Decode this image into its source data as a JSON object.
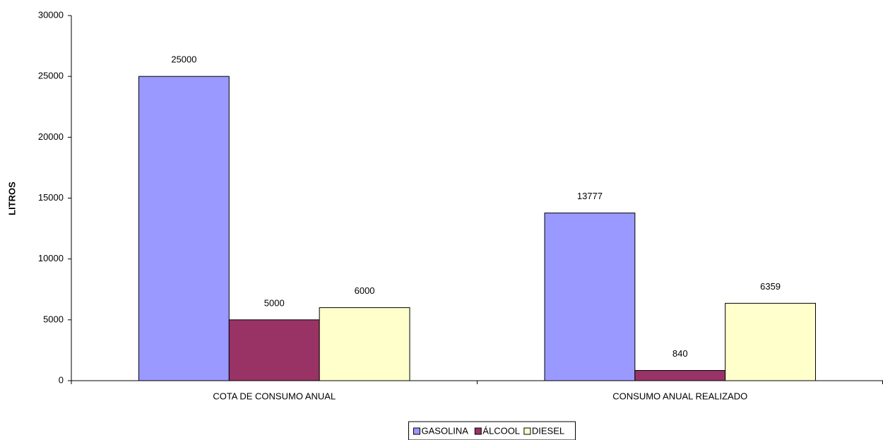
{
  "chart_data": {
    "type": "bar",
    "ylabel": "LITROS",
    "categories": [
      "COTA DE CONSUMO ANUAL",
      "CONSUMO ANUAL REALIZADO"
    ],
    "series": [
      {
        "name": "GASOLINA",
        "color": "#9999ff",
        "values": [
          25000,
          13777
        ]
      },
      {
        "name": "ÁLCOOL",
        "color": "#993366",
        "values": [
          5000,
          840
        ]
      },
      {
        "name": "DIESEL",
        "color": "#ffffcc",
        "values": [
          6000,
          6359
        ]
      }
    ],
    "ylim": [
      0,
      30000
    ],
    "yticks": [
      0,
      5000,
      10000,
      15000,
      20000,
      25000,
      30000
    ],
    "grid": false,
    "legend": "bottom"
  }
}
